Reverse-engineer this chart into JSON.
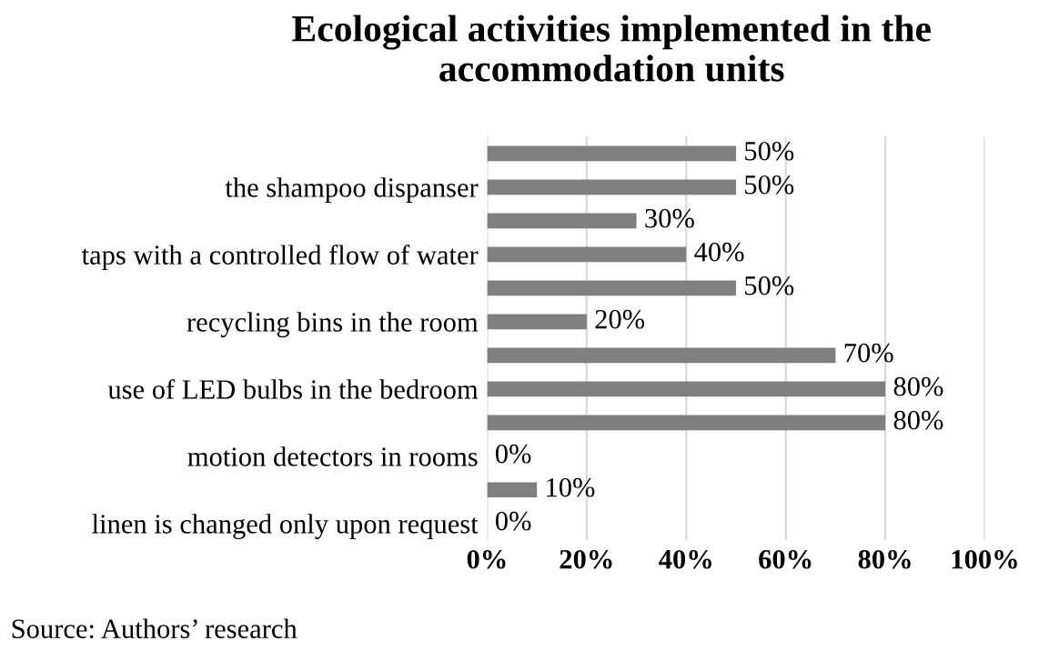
{
  "chart_data": {
    "type": "bar",
    "orientation": "horizontal",
    "title": "Ecological activities implemented in the\naccommodation units",
    "categories": [
      null,
      "the shampoo dispanser",
      null,
      "taps with a controlled flow of water",
      null,
      "recycling bins in the room",
      null,
      "use of LED bulbs in the bedroom",
      null,
      "motion detectors in rooms",
      null,
      "linen is changed only upon request"
    ],
    "values": [
      50,
      50,
      30,
      40,
      50,
      20,
      70,
      80,
      80,
      0,
      10,
      0
    ],
    "color": "#7f7f7f",
    "value_labels": [
      "50%",
      "50%",
      "30%",
      "40%",
      "50%",
      "20%",
      "70%",
      "80%",
      "80%",
      "0%",
      "10%",
      "0%"
    ],
    "xlim": [
      0,
      100
    ],
    "xticks": [
      {
        "value": 0,
        "label": "0%"
      },
      {
        "value": 20,
        "label": "20%"
      },
      {
        "value": 40,
        "label": "40%"
      },
      {
        "value": 60,
        "label": "60%"
      },
      {
        "value": 80,
        "label": "80%"
      },
      {
        "value": 100,
        "label": "100%"
      }
    ],
    "grid": "x",
    "annotations": [
      "Source: Authors’ research"
    ]
  }
}
